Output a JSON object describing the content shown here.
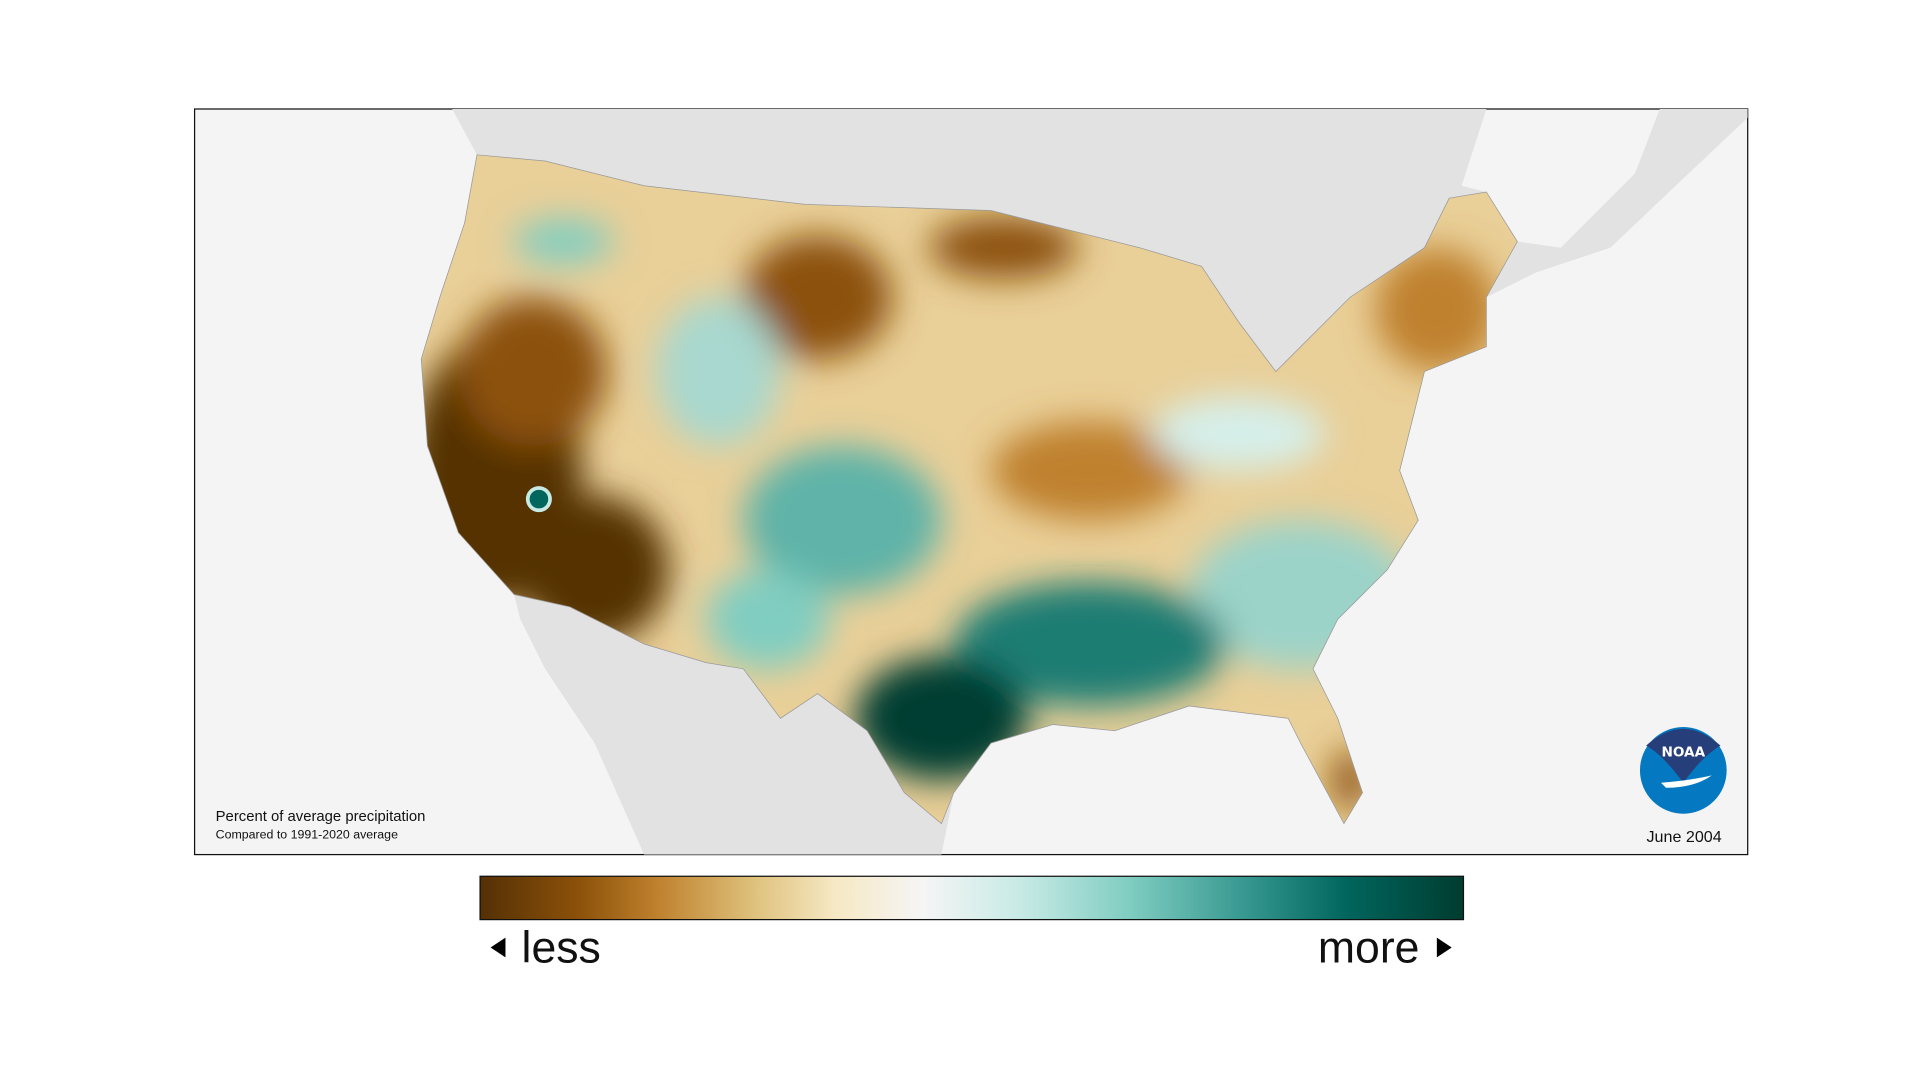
{
  "map": {
    "title": "Percent of average precipitation",
    "subtitle": "Compared to 1991-2020 average",
    "date": "June 2004",
    "logo_text": "NOAA"
  },
  "legend": {
    "less_label": "less",
    "more_label": "more",
    "colors": [
      "#543005",
      "#8c510a",
      "#bf812d",
      "#dfc27d",
      "#f6e8c3",
      "#f5f5f5",
      "#c7eae5",
      "#80cdc1",
      "#35978f",
      "#01665e",
      "#003c30"
    ]
  },
  "colors": {
    "frame_background": "#f4f4f4",
    "neighbor_land": "#e2e2e2",
    "noaa_dark": "#263f7a",
    "noaa_light": "#0479c2"
  }
}
